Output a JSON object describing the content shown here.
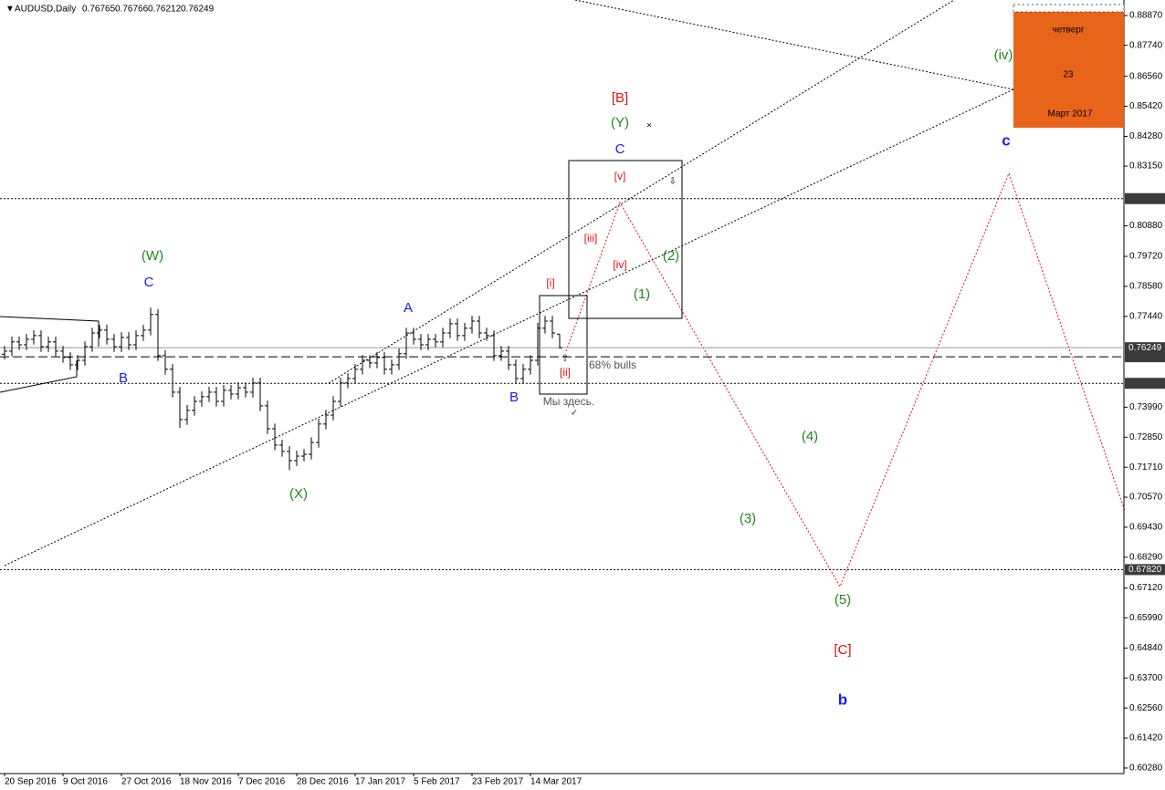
{
  "chart_data": {
    "type": "ohlc",
    "title": "AUDUSD,Daily",
    "color": "#000000",
    "categories": [
      "20 Sep 2016",
      null,
      null,
      null,
      null,
      null,
      null,
      null,
      "9 Oct 2016",
      null,
      null,
      null,
      null,
      null,
      null,
      null,
      "27 Oct 2016",
      null,
      null,
      null,
      null,
      null,
      null,
      null,
      "18 Nov 2016",
      null,
      null,
      null,
      null,
      null,
      null,
      null,
      "7 Dec 2016",
      null,
      null,
      null,
      null,
      null,
      null,
      null,
      "28 Dec 2016",
      null,
      null,
      null,
      null,
      null,
      null,
      null,
      "17 Jan 2017",
      null,
      null,
      null,
      null,
      null,
      null,
      null,
      "5 Feb 2017",
      null,
      null,
      null,
      null,
      null,
      null,
      null,
      "23 Feb 2017",
      null,
      null,
      null,
      null,
      null,
      null,
      null,
      "14 Mar 2017",
      null,
      null,
      null,
      null
    ],
    "open": [
      0.76,
      0.7612,
      0.7647,
      0.7636,
      0.7657,
      0.7671,
      0.7629,
      0.7647,
      0.7612,
      0.7588,
      0.756,
      0.7577,
      0.7629,
      0.7681,
      0.7692,
      0.7657,
      0.7629,
      0.7664,
      0.7636,
      0.7671,
      0.7692,
      0.7751,
      0.7595,
      0.7543,
      0.7456,
      0.7352,
      0.7387,
      0.7421,
      0.7439,
      0.7456,
      0.7421,
      0.7463,
      0.7449,
      0.7473,
      0.7456,
      0.7491,
      0.7404,
      0.7317,
      0.7255,
      0.7231,
      0.7196,
      0.7213,
      0.722,
      0.7265,
      0.7335,
      0.7369,
      0.7421,
      0.7491,
      0.7508,
      0.7543,
      0.7577,
      0.7567,
      0.7588,
      0.7543,
      0.756,
      0.7602,
      0.7681,
      0.7657,
      0.7636,
      0.7657,
      0.7647,
      0.7681,
      0.7716,
      0.7671,
      0.7699,
      0.7726,
      0.7681,
      0.7671,
      0.7595,
      0.7612,
      0.756,
      0.7508,
      0.7543,
      0.7577,
      0.7699,
      0.7726,
      0.76765
    ],
    "high": [
      0.7632,
      0.7667,
      0.7667,
      0.7677,
      0.7691,
      0.7691,
      0.7667,
      0.7667,
      0.7632,
      0.7608,
      0.7597,
      0.7649,
      0.7701,
      0.7712,
      0.7712,
      0.7677,
      0.7684,
      0.7684,
      0.7691,
      0.7712,
      0.7777,
      0.7771,
      0.7615,
      0.7563,
      0.7476,
      0.7407,
      0.7441,
      0.7459,
      0.7476,
      0.7476,
      0.7483,
      0.7483,
      0.7493,
      0.7493,
      0.7511,
      0.7511,
      0.7424,
      0.7337,
      0.7275,
      0.7251,
      0.7233,
      0.724,
      0.7285,
      0.7355,
      0.7389,
      0.7441,
      0.7511,
      0.7528,
      0.7563,
      0.7597,
      0.7597,
      0.7608,
      0.7608,
      0.758,
      0.7622,
      0.7701,
      0.7701,
      0.7677,
      0.7677,
      0.7677,
      0.7701,
      0.7736,
      0.7736,
      0.7719,
      0.7746,
      0.7746,
      0.7701,
      0.7691,
      0.7632,
      0.7632,
      0.758,
      0.7563,
      0.7597,
      0.7719,
      0.7746,
      0.7746,
      0.76766
    ],
    "low": [
      0.758,
      0.7592,
      0.7616,
      0.7616,
      0.7637,
      0.7609,
      0.7609,
      0.7592,
      0.7568,
      0.754,
      0.754,
      0.7557,
      0.7609,
      0.7661,
      0.7637,
      0.7609,
      0.7609,
      0.7616,
      0.7616,
      0.7651,
      0.7672,
      0.7575,
      0.7523,
      0.7436,
      0.732,
      0.7332,
      0.7367,
      0.7401,
      0.7419,
      0.7401,
      0.7401,
      0.7429,
      0.7429,
      0.7436,
      0.7436,
      0.7384,
      0.7297,
      0.7235,
      0.7211,
      0.716,
      0.7176,
      0.7193,
      0.72,
      0.7245,
      0.7315,
      0.7349,
      0.7401,
      0.7471,
      0.7488,
      0.7523,
      0.7547,
      0.7547,
      0.7523,
      0.7523,
      0.754,
      0.7582,
      0.7637,
      0.7616,
      0.7616,
      0.7627,
      0.7627,
      0.7661,
      0.7651,
      0.7651,
      0.7679,
      0.7661,
      0.7651,
      0.7575,
      0.7575,
      0.754,
      0.7488,
      0.7488,
      0.7523,
      0.7557,
      0.7679,
      0.7661,
      0.76212
    ],
    "close": [
      0.7612,
      0.7647,
      0.7636,
      0.7657,
      0.7671,
      0.7629,
      0.7647,
      0.7612,
      0.7588,
      0.756,
      0.7577,
      0.7629,
      0.7681,
      0.7692,
      0.7657,
      0.7629,
      0.7664,
      0.7636,
      0.7671,
      0.7692,
      0.7751,
      0.7595,
      0.7543,
      0.7456,
      0.7352,
      0.7387,
      0.7421,
      0.7439,
      0.7456,
      0.7421,
      0.7463,
      0.7449,
      0.7473,
      0.7456,
      0.7491,
      0.7404,
      0.7317,
      0.7255,
      0.7231,
      0.7196,
      0.7213,
      0.722,
      0.7265,
      0.7335,
      0.7369,
      0.7421,
      0.7491,
      0.7508,
      0.7543,
      0.7577,
      0.7567,
      0.7588,
      0.7543,
      0.756,
      0.7602,
      0.7681,
      0.7657,
      0.7636,
      0.7657,
      0.7647,
      0.7681,
      0.7716,
      0.7671,
      0.7699,
      0.7726,
      0.7681,
      0.7671,
      0.7595,
      0.7612,
      0.756,
      0.7508,
      0.7543,
      0.7577,
      0.7699,
      0.7726,
      0.7681,
      0.76249
    ],
    "ylim": [
      0.6007,
      0.8946
    ],
    "yticks": [
      {
        "value": 0.8887,
        "label": "0.88870"
      },
      {
        "value": 0.8774,
        "label": "0.87740"
      },
      {
        "value": 0.8656,
        "label": "0.86560"
      },
      {
        "value": 0.8542,
        "label": "0.85420"
      },
      {
        "value": 0.8428,
        "label": "0.84280"
      },
      {
        "value": 0.8315,
        "label": "0.83150"
      },
      {
        "value": 0.8088,
        "label": "0.80880"
      },
      {
        "value": 0.7972,
        "label": "0.79720"
      },
      {
        "value": 0.7858,
        "label": "0.78580"
      },
      {
        "value": 0.7744,
        "label": "0.77440"
      },
      {
        "value": 0.7399,
        "label": "0.73990"
      },
      {
        "value": 0.7285,
        "label": "0.72850"
      },
      {
        "value": 0.7171,
        "label": "0.71710"
      },
      {
        "value": 0.7057,
        "label": "0.70570"
      },
      {
        "value": 0.6943,
        "label": "0.69430"
      },
      {
        "value": 0.6829,
        "label": "0.68290"
      },
      {
        "value": 0.6712,
        "label": "0.67120"
      },
      {
        "value": 0.6599,
        "label": "0.65990"
      },
      {
        "value": 0.6484,
        "label": "0.64840"
      },
      {
        "value": 0.637,
        "label": "0.63700"
      },
      {
        "value": 0.6256,
        "label": "0.62560"
      },
      {
        "value": 0.6142,
        "label": "0.61420"
      },
      {
        "value": 0.6028,
        "label": "0.60280"
      }
    ],
    "grid": false,
    "levels": [
      {
        "value": 0.81914,
        "style": "dotted"
      },
      {
        "value": 0.75906,
        "style": "dashed"
      },
      {
        "value": 0.74897,
        "style": "dotted"
      },
      {
        "value": 0.6782,
        "label": "0.67820",
        "style": "dotted"
      }
    ],
    "annotations": [
      {
        "text": "(W)",
        "color": "#1a8c1a"
      },
      {
        "text": "C",
        "color": "#1a1aff"
      },
      {
        "text": "B",
        "color": "#1a1aff"
      },
      {
        "text": "(X)",
        "color": "#1a8c1a"
      },
      {
        "text": "A",
        "color": "#1a1aff"
      },
      {
        "text": "B",
        "color": "#1a1aff"
      },
      {
        "text": "[i]",
        "color": "#e01010"
      },
      {
        "text": "[ii]",
        "color": "#e01010"
      },
      {
        "text": "[iii]",
        "color": "#e01010"
      },
      {
        "text": "[iv]",
        "color": "#e01010"
      },
      {
        "text": "[v]",
        "color": "#e01010"
      },
      {
        "text": "C",
        "color": "#1a1aff"
      },
      {
        "text": "(Y)",
        "color": "#1a8c1a"
      },
      {
        "text": "[B]",
        "color": "#e01010"
      },
      {
        "text": "(1)",
        "color": "#1a8c1a"
      },
      {
        "text": "(2)",
        "color": "#1a8c1a"
      },
      {
        "text": "(3)",
        "color": "#1a8c1a"
      },
      {
        "text": "(4)",
        "color": "#1a8c1a"
      },
      {
        "text": "(5)",
        "color": "#1a8c1a"
      },
      {
        "text": "[C]",
        "color": "#e01010"
      },
      {
        "text": "b",
        "color": "#1a1aff"
      },
      {
        "text": "c",
        "color": "#1a1aff"
      },
      {
        "text": "(iv)",
        "color": "#1a8c1a"
      },
      {
        "text": "68% bulls",
        "color": "#555555"
      },
      {
        "text": "Мы здесь.",
        "color": "#555555"
      }
    ],
    "calendar": {
      "weekday": "четверг",
      "day": 23,
      "month": "Март 2017"
    }
  }
}
